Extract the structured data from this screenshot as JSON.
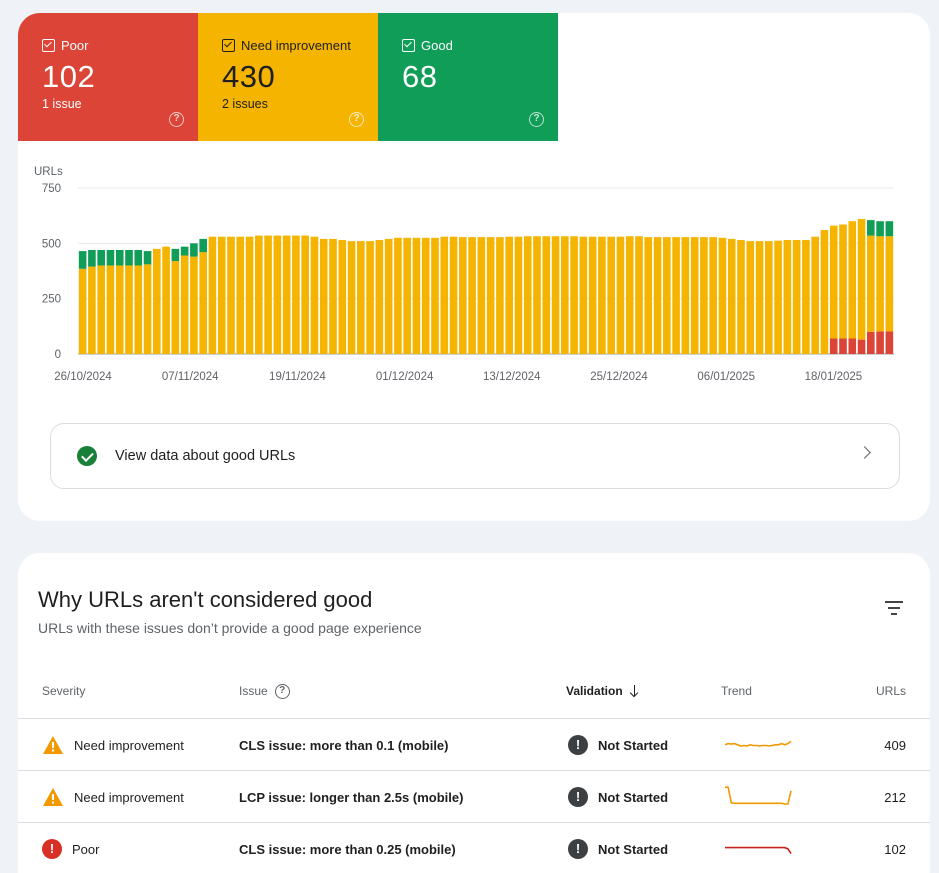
{
  "summary": {
    "poor": {
      "label": "Poor",
      "value": "102",
      "sub": "1 issue",
      "color": "#db4437"
    },
    "need": {
      "label": "Need improvement",
      "value": "430",
      "sub": "2 issues",
      "color": "#f4b400"
    },
    "good": {
      "label": "Good",
      "value": "68",
      "sub": "",
      "color": "#0f9d58"
    }
  },
  "chart_data": {
    "type": "bar",
    "stacked": true,
    "ylabel": "URLs",
    "ylim": [
      0,
      750
    ],
    "yticks": [
      0,
      250,
      500,
      750
    ],
    "xtick_labels": [
      "26/10/2024",
      "07/11/2024",
      "19/11/2024",
      "01/12/2024",
      "13/12/2024",
      "25/12/2024",
      "06/01/2025",
      "18/01/2025"
    ],
    "series": [
      {
        "name": "Poor",
        "color": "#db4437",
        "values": [
          0,
          0,
          0,
          0,
          0,
          0,
          0,
          0,
          0,
          0,
          0,
          0,
          0,
          0,
          0,
          0,
          0,
          0,
          0,
          0,
          0,
          0,
          0,
          0,
          0,
          0,
          0,
          0,
          0,
          0,
          0,
          0,
          0,
          0,
          0,
          0,
          0,
          0,
          0,
          0,
          0,
          0,
          0,
          0,
          0,
          0,
          0,
          0,
          0,
          0,
          0,
          0,
          0,
          0,
          0,
          0,
          0,
          0,
          0,
          0,
          0,
          0,
          0,
          0,
          0,
          0,
          0,
          0,
          0,
          0,
          0,
          0,
          0,
          0,
          0,
          0,
          0,
          0,
          0,
          0,
          0,
          70,
          70,
          70,
          65,
          100,
          102,
          102
        ]
      },
      {
        "name": "Need improvement",
        "color": "#f4b400",
        "values": [
          385,
          395,
          400,
          400,
          400,
          400,
          400,
          405,
          475,
          485,
          420,
          445,
          440,
          460,
          530,
          530,
          530,
          530,
          530,
          535,
          535,
          535,
          535,
          535,
          535,
          530,
          520,
          520,
          515,
          510,
          510,
          510,
          515,
          520,
          525,
          525,
          525,
          525,
          525,
          530,
          530,
          528,
          528,
          528,
          528,
          528,
          530,
          530,
          532,
          532,
          532,
          532,
          532,
          532,
          530,
          530,
          530,
          530,
          530,
          532,
          532,
          528,
          528,
          528,
          528,
          528,
          528,
          528,
          528,
          525,
          520,
          515,
          510,
          510,
          510,
          512,
          515,
          515,
          515,
          530,
          560,
          510,
          515,
          530,
          545,
          435,
          430,
          430
        ]
      },
      {
        "name": "Good",
        "color": "#0f9d58",
        "values": [
          80,
          75,
          70,
          70,
          70,
          70,
          70,
          60,
          0,
          0,
          55,
          40,
          60,
          60,
          0,
          0,
          0,
          0,
          0,
          0,
          0,
          0,
          0,
          0,
          0,
          0,
          0,
          0,
          0,
          0,
          0,
          0,
          0,
          0,
          0,
          0,
          0,
          0,
          0,
          0,
          0,
          0,
          0,
          0,
          0,
          0,
          0,
          0,
          0,
          0,
          0,
          0,
          0,
          0,
          0,
          0,
          0,
          0,
          0,
          0,
          0,
          0,
          0,
          0,
          0,
          0,
          0,
          0,
          0,
          0,
          0,
          0,
          0,
          0,
          0,
          0,
          0,
          0,
          0,
          0,
          0,
          0,
          0,
          0,
          0,
          70,
          68,
          68
        ]
      }
    ]
  },
  "good_link": {
    "text": "View data about good URLs"
  },
  "issues_section": {
    "title": "Why URLs aren't considered good",
    "subtitle": "URLs with these issues don’t provide a good page experience",
    "headers": {
      "severity": "Severity",
      "issue": "Issue",
      "validation": "Validation",
      "trend": "Trend",
      "urls": "URLs"
    },
    "rows": [
      {
        "severity": "Need improvement",
        "issue": "CLS issue: more than 0.1 (mobile)",
        "validation": "Not Started",
        "urls": "409",
        "trend_color": "#f29900",
        "trend": [
          0.55,
          0.6,
          0.58,
          0.6,
          0.55,
          0.5,
          0.52,
          0.5,
          0.55,
          0.52,
          0.52,
          0.5,
          0.52,
          0.52,
          0.5,
          0.52,
          0.55,
          0.55,
          0.6,
          0.55,
          0.6,
          0.7
        ]
      },
      {
        "severity": "Need improvement",
        "issue": "LCP issue: longer than 2.5s (mobile)",
        "validation": "Not Started",
        "urls": "212",
        "trend_color": "#f29900",
        "trend": [
          0.95,
          0.95,
          0.3,
          0.28,
          0.28,
          0.28,
          0.28,
          0.28,
          0.28,
          0.28,
          0.28,
          0.28,
          0.28,
          0.28,
          0.28,
          0.28,
          0.28,
          0.28,
          0.28,
          0.25,
          0.25,
          0.8
        ]
      },
      {
        "severity": "Poor",
        "issue": "CLS issue: more than 0.25 (mobile)",
        "validation": "Not Started",
        "urls": "102",
        "trend_color": "#c5221f",
        "trend": [
          0.6,
          0.6,
          0.6,
          0.6,
          0.6,
          0.6,
          0.6,
          0.6,
          0.6,
          0.6,
          0.6,
          0.6,
          0.6,
          0.6,
          0.6,
          0.6,
          0.6,
          0.6,
          0.6,
          0.6,
          0.55,
          0.35
        ]
      }
    ]
  }
}
